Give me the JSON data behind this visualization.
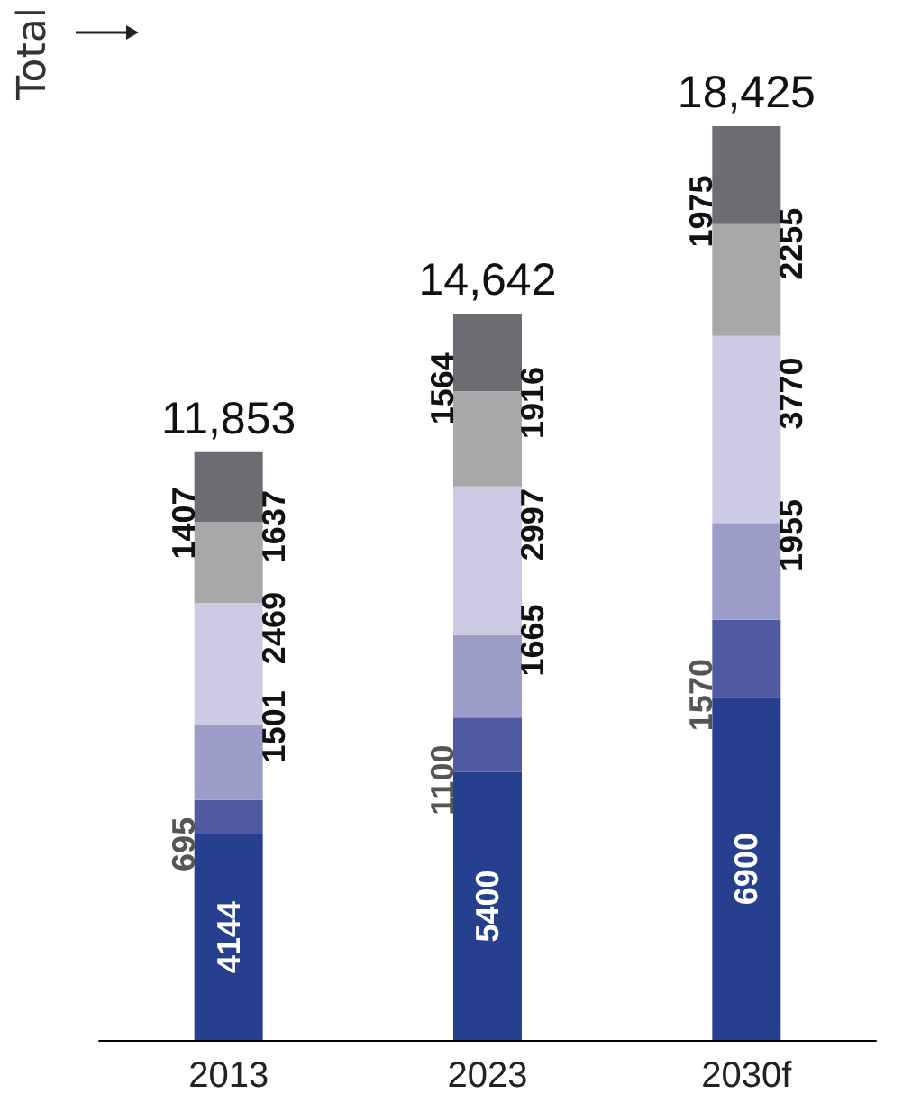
{
  "chart_data": {
    "type": "bar",
    "stacked": true,
    "data_labels": true,
    "categories": [
      "2013",
      "2023",
      "2030f"
    ],
    "series": [
      {
        "color": "#273f8f",
        "values": [
          4144,
          5400,
          6900
        ]
      },
      {
        "color": "#4f5aa0",
        "values": [
          695,
          1100,
          1570
        ]
      },
      {
        "color": "#9c9cc9",
        "values": [
          1501,
          1665,
          1955
        ]
      },
      {
        "color": "#cccbe3",
        "values": [
          2469,
          2997,
          3770
        ]
      },
      {
        "color": "#a8a8ab",
        "values": [
          1637,
          1916,
          2255
        ]
      },
      {
        "color": "#6c6d72",
        "values": [
          1407,
          1564,
          1975
        ]
      }
    ],
    "totals": [
      "11,853",
      "14,642",
      "18,425"
    ],
    "annotations": [
      "Total"
    ]
  }
}
